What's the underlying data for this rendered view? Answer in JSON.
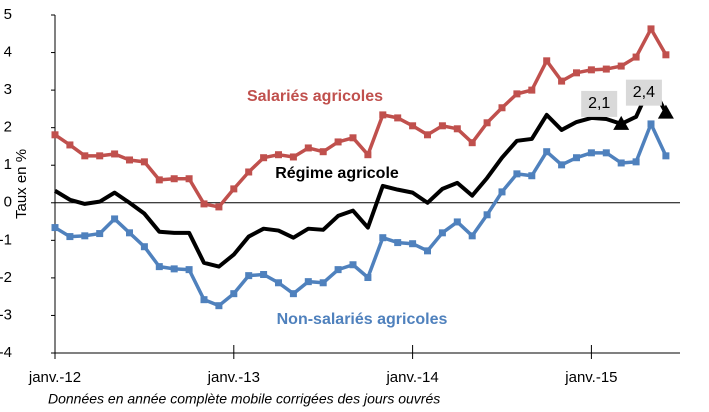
{
  "chart_data": {
    "type": "line",
    "y_label": "Taux en %",
    "note": "Données en année complète mobile corrigées des jours ouvrés",
    "x": [
      "2012-01",
      "2012-02",
      "2012-03",
      "2012-04",
      "2012-05",
      "2012-06",
      "2012-07",
      "2012-08",
      "2012-09",
      "2012-10",
      "2012-11",
      "2012-12",
      "2013-01",
      "2013-02",
      "2013-03",
      "2013-04",
      "2013-05",
      "2013-06",
      "2013-07",
      "2013-08",
      "2013-09",
      "2013-10",
      "2013-11",
      "2013-12",
      "2014-01",
      "2014-02",
      "2014-03",
      "2014-04",
      "2014-05",
      "2014-06",
      "2014-07",
      "2014-08",
      "2014-09",
      "2014-10",
      "2014-11",
      "2014-12",
      "2015-01",
      "2015-02",
      "2015-03",
      "2015-04",
      "2015-05",
      "2015-06"
    ],
    "xticks": [
      {
        "value": "2012-01",
        "label": "janv.-12"
      },
      {
        "value": "2013-01",
        "label": "janv.-13"
      },
      {
        "value": "2014-01",
        "label": "janv.-14"
      },
      {
        "value": "2015-01",
        "label": "janv.-15"
      }
    ],
    "ylim": [
      -4,
      5
    ],
    "yticks": [
      -4,
      -3,
      -2,
      -1,
      0,
      1,
      2,
      3,
      4,
      5
    ],
    "series": [
      {
        "name": "Salariés agricoles",
        "color": "#c0504d",
        "marker": "square",
        "values": [
          1.81,
          1.54,
          1.25,
          1.25,
          1.3,
          1.14,
          1.09,
          0.61,
          0.64,
          0.64,
          -0.03,
          -0.11,
          0.37,
          0.82,
          1.2,
          1.28,
          1.22,
          1.46,
          1.36,
          1.62,
          1.73,
          1.28,
          2.34,
          2.26,
          2.05,
          1.81,
          2.05,
          1.97,
          1.6,
          2.13,
          2.53,
          2.9,
          3.0,
          3.78,
          3.24,
          3.46,
          3.54,
          3.56,
          3.64,
          3.88,
          4.63,
          3.94
        ]
      },
      {
        "name": "Régime agricole",
        "color": "#000000",
        "marker": "none",
        "values": [
          0.32,
          0.08,
          -0.03,
          0.03,
          0.27,
          0.0,
          -0.29,
          -0.77,
          -0.8,
          -0.8,
          -1.6,
          -1.7,
          -1.38,
          -0.9,
          -0.69,
          -0.74,
          -0.93,
          -0.69,
          -0.72,
          -0.35,
          -0.21,
          -0.66,
          0.45,
          0.35,
          0.27,
          0.0,
          0.37,
          0.53,
          0.19,
          0.66,
          1.2,
          1.65,
          1.7,
          2.34,
          1.94,
          2.15,
          2.26,
          2.23,
          2.1,
          2.29,
          3.16,
          2.4
        ],
        "value_labels": [
          null,
          null,
          null,
          null,
          null,
          null,
          null,
          null,
          null,
          null,
          null,
          null,
          null,
          null,
          null,
          null,
          null,
          null,
          null,
          null,
          null,
          null,
          null,
          null,
          null,
          null,
          null,
          null,
          null,
          null,
          null,
          null,
          null,
          null,
          null,
          null,
          null,
          null,
          "2,1",
          null,
          null,
          "2,4"
        ]
      },
      {
        "name": "Non-salariés agricoles",
        "color": "#4f81bd",
        "marker": "square",
        "values": [
          -0.66,
          -0.9,
          -0.88,
          -0.82,
          -0.43,
          -0.8,
          -1.17,
          -1.7,
          -1.76,
          -1.78,
          -2.58,
          -2.74,
          -2.42,
          -1.94,
          -1.91,
          -2.13,
          -2.42,
          -2.1,
          -2.13,
          -1.78,
          -1.65,
          -1.99,
          -0.93,
          -1.06,
          -1.09,
          -1.28,
          -0.8,
          -0.51,
          -0.88,
          -0.32,
          0.29,
          0.77,
          0.72,
          1.36,
          1.01,
          1.2,
          1.33,
          1.33,
          1.06,
          1.09,
          2.1,
          1.25
        ]
      }
    ]
  }
}
